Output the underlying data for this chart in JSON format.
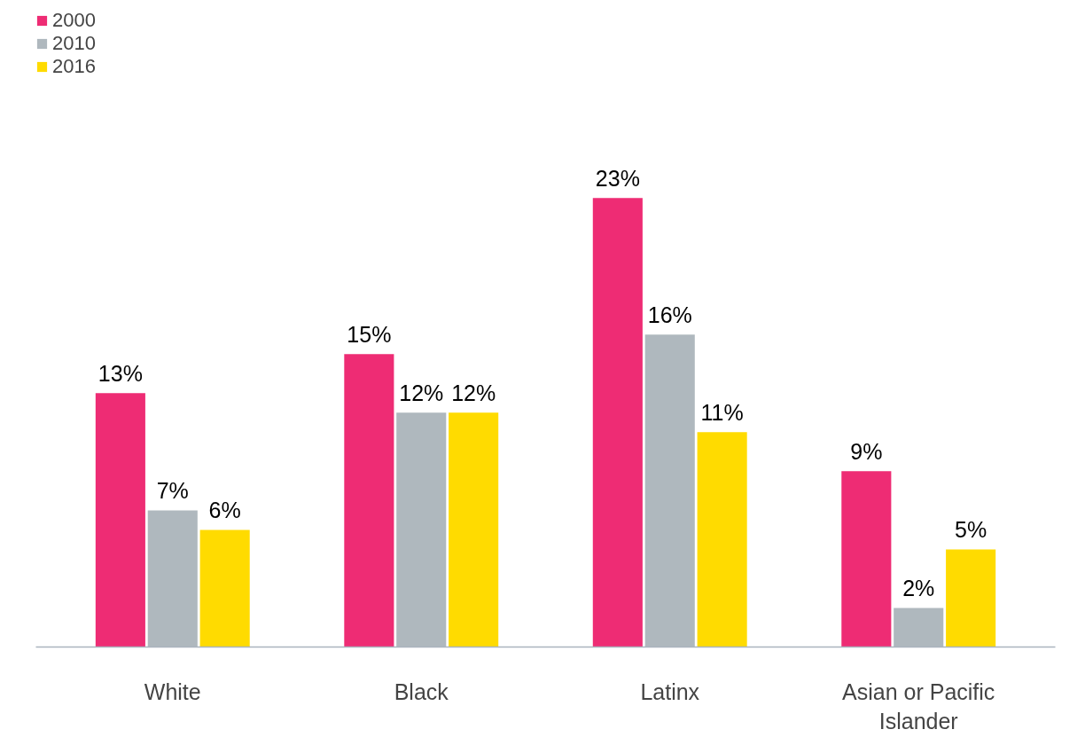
{
  "chart_data": {
    "type": "bar",
    "categories": [
      "White",
      "Black",
      "Latinx",
      "Asian or Pacific Islander"
    ],
    "series": [
      {
        "name": "2000",
        "color": "#ee2c74",
        "values": [
          13,
          15,
          23,
          9
        ],
        "value_labels": [
          "13%",
          "15%",
          "23%",
          "9%"
        ]
      },
      {
        "name": "2010",
        "color": "#afb8be",
        "values": [
          7,
          12,
          16,
          2
        ],
        "value_labels": [
          "7%",
          "12%",
          "16%",
          "2%"
        ]
      },
      {
        "name": "2016",
        "color": "#ffdb00",
        "values": [
          6,
          12,
          11,
          5
        ],
        "value_labels": [
          "6%",
          "12%",
          "11%",
          "5%"
        ]
      }
    ],
    "legend": "top left",
    "grid": false,
    "tick_labels": "x"
  }
}
